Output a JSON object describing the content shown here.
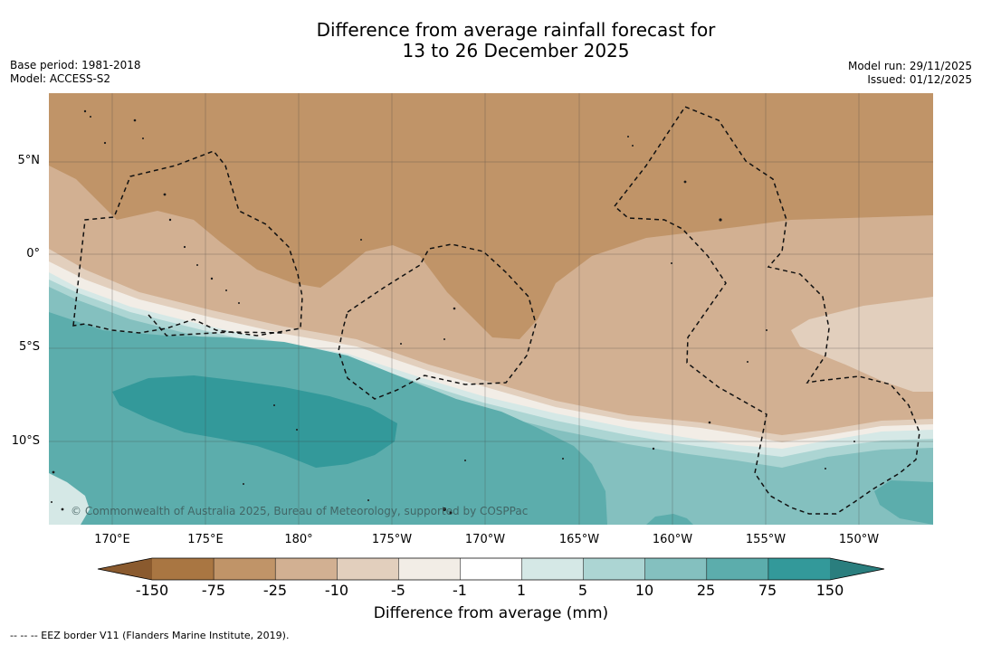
{
  "title": {
    "line1": "Difference from average rainfall forecast for",
    "line2": "13 to 26 December 2025"
  },
  "meta": {
    "base_period": "Base period: 1981-2018",
    "model": "Model: ACCESS-S2",
    "model_run": "Model run: 29/11/2025",
    "issued": "Issued: 01/12/2025"
  },
  "map": {
    "lat_labels": [
      "5°N",
      "0°",
      "5°S",
      "10°S"
    ],
    "lon_labels": [
      "170°E",
      "175°E",
      "180°",
      "175°W",
      "170°W",
      "165°W",
      "160°W",
      "155°W",
      "150°W"
    ],
    "copyright": "© Commonwealth of Australia 2025, Bureau of Meteorology, supported by COSPPac"
  },
  "colorbar": {
    "ticks": [
      "-150",
      "-75",
      "-25",
      "-10",
      "-5",
      "-1",
      "1",
      "5",
      "10",
      "25",
      "75",
      "150"
    ],
    "colors": [
      "#8a5a2e",
      "#a97642",
      "#c09468",
      "#d2b092",
      "#e2cfbd",
      "#f2ede6",
      "#ffffff",
      "#d5e8e6",
      "#acd5d3",
      "#84c0bf",
      "#5cadac",
      "#33999a",
      "#2a7e7e"
    ],
    "title": "Difference from average (mm)"
  },
  "footer": "--  --  -- EEZ border V11 (Flanders Marine Institute, 2019)."
}
